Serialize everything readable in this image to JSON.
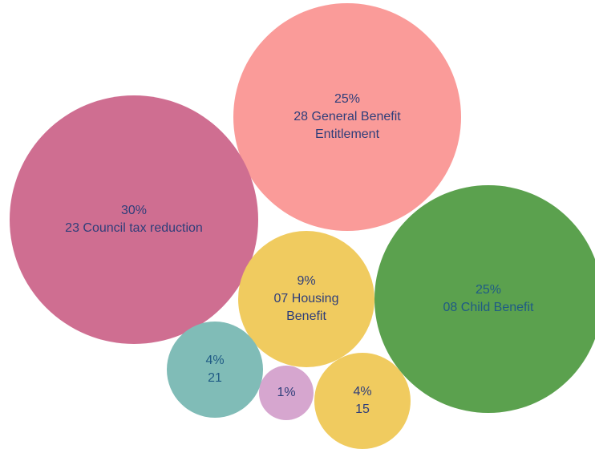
{
  "chart_data": {
    "type": "bubble",
    "title": "",
    "bubbles": [
      {
        "percent": "25%",
        "label": "28 General Benefit Entitlement",
        "color": "#fa9b99",
        "text_color": "#2f3e7a"
      },
      {
        "percent": "30%",
        "label": "23 Council tax reduction",
        "color": "#cf6e91",
        "text_color": "#2f3e7a"
      },
      {
        "percent": "25%",
        "label": "08 Child Benefit",
        "color": "#5ba14e",
        "text_color": "#1f5b85"
      },
      {
        "percent": "9%",
        "label": "07 Housing Benefit",
        "color": "#f0cb5f",
        "text_color": "#2f3e7a"
      },
      {
        "percent": "4%",
        "label": "21",
        "color": "#80bcb7",
        "text_color": "#1f5b85"
      },
      {
        "percent": "1%",
        "label": "",
        "color": "#d6a6cf",
        "text_color": "#2f3e7a"
      },
      {
        "percent": "4%",
        "label": "15",
        "color": "#f0cb5f",
        "text_color": "#2f3e7a"
      }
    ]
  }
}
